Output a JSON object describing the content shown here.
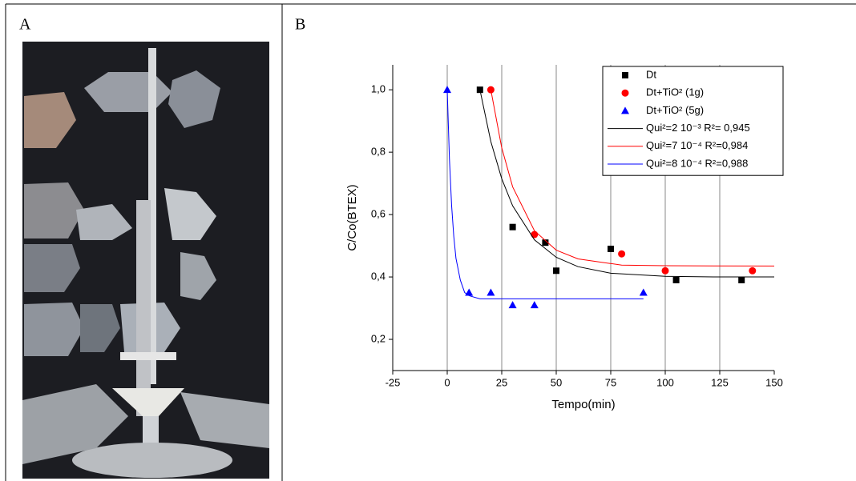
{
  "panel_labels": [
    "A",
    "B"
  ],
  "chart_data": {
    "type": "scatter",
    "x_label": "Tempo(min)",
    "y_label": "C/Co(BTEX)",
    "xlim": [
      -25,
      150
    ],
    "ylim": [
      0.1,
      1.08
    ],
    "xticks": [
      -25,
      0,
      25,
      50,
      75,
      100,
      125,
      150
    ],
    "yticks": [
      {
        "value": 0.2,
        "label": "0,2"
      },
      {
        "value": 0.4,
        "label": "0,4"
      },
      {
        "value": 0.6,
        "label": "0,6"
      },
      {
        "value": 0.8,
        "label": "0,8"
      },
      {
        "value": 1.0,
        "label": "1,0"
      }
    ],
    "grid": "x",
    "legend": "top-right",
    "series": [
      {
        "name": "Dt",
        "color": "#000000",
        "marker": "square",
        "x": [
          15,
          30,
          45,
          50,
          75,
          105,
          135
        ],
        "values": [
          1.0,
          0.56,
          0.51,
          0.42,
          0.49,
          0.39,
          0.39
        ]
      },
      {
        "name": "Dt+TiO² (1g)",
        "color": "#ff0000",
        "marker": "circle",
        "x": [
          20,
          40,
          80,
          100,
          140
        ],
        "values": [
          1.0,
          0.536,
          0.474,
          0.42,
          0.42
        ]
      },
      {
        "name": "Dt+TiO² (5g)",
        "color": "#0000ff",
        "marker": "triangle",
        "x": [
          0,
          10,
          20,
          30,
          40,
          90
        ],
        "values": [
          1.0,
          0.35,
          0.35,
          0.31,
          0.31,
          0.35
        ]
      },
      {
        "name": "Qui²=2 10⁻³ R²= 0,945",
        "color": "#000000",
        "marker": "line",
        "x": [
          15,
          20,
          25,
          30,
          40,
          50,
          60,
          75,
          100,
          125,
          150
        ],
        "values": [
          1.0,
          0.834,
          0.715,
          0.628,
          0.519,
          0.463,
          0.433,
          0.412,
          0.402,
          0.4,
          0.4
        ]
      },
      {
        "name": "Qui²=7 10⁻⁴ R²=0,984",
        "color": "#ff0000",
        "marker": "line",
        "x": [
          20,
          25,
          30,
          40,
          50,
          60,
          80,
          100,
          150
        ],
        "values": [
          1.0,
          0.814,
          0.689,
          0.548,
          0.486,
          0.458,
          0.438,
          0.436,
          0.435
        ]
      },
      {
        "name": "Qui²=8 10⁻⁴ R²=0,988",
        "color": "#0000ff",
        "marker": "line",
        "x": [
          0,
          1,
          2,
          3,
          4,
          6,
          8,
          10,
          15,
          90
        ],
        "values": [
          1.0,
          0.78,
          0.63,
          0.53,
          0.46,
          0.39,
          0.35,
          0.34,
          0.33,
          0.33
        ]
      }
    ]
  }
}
